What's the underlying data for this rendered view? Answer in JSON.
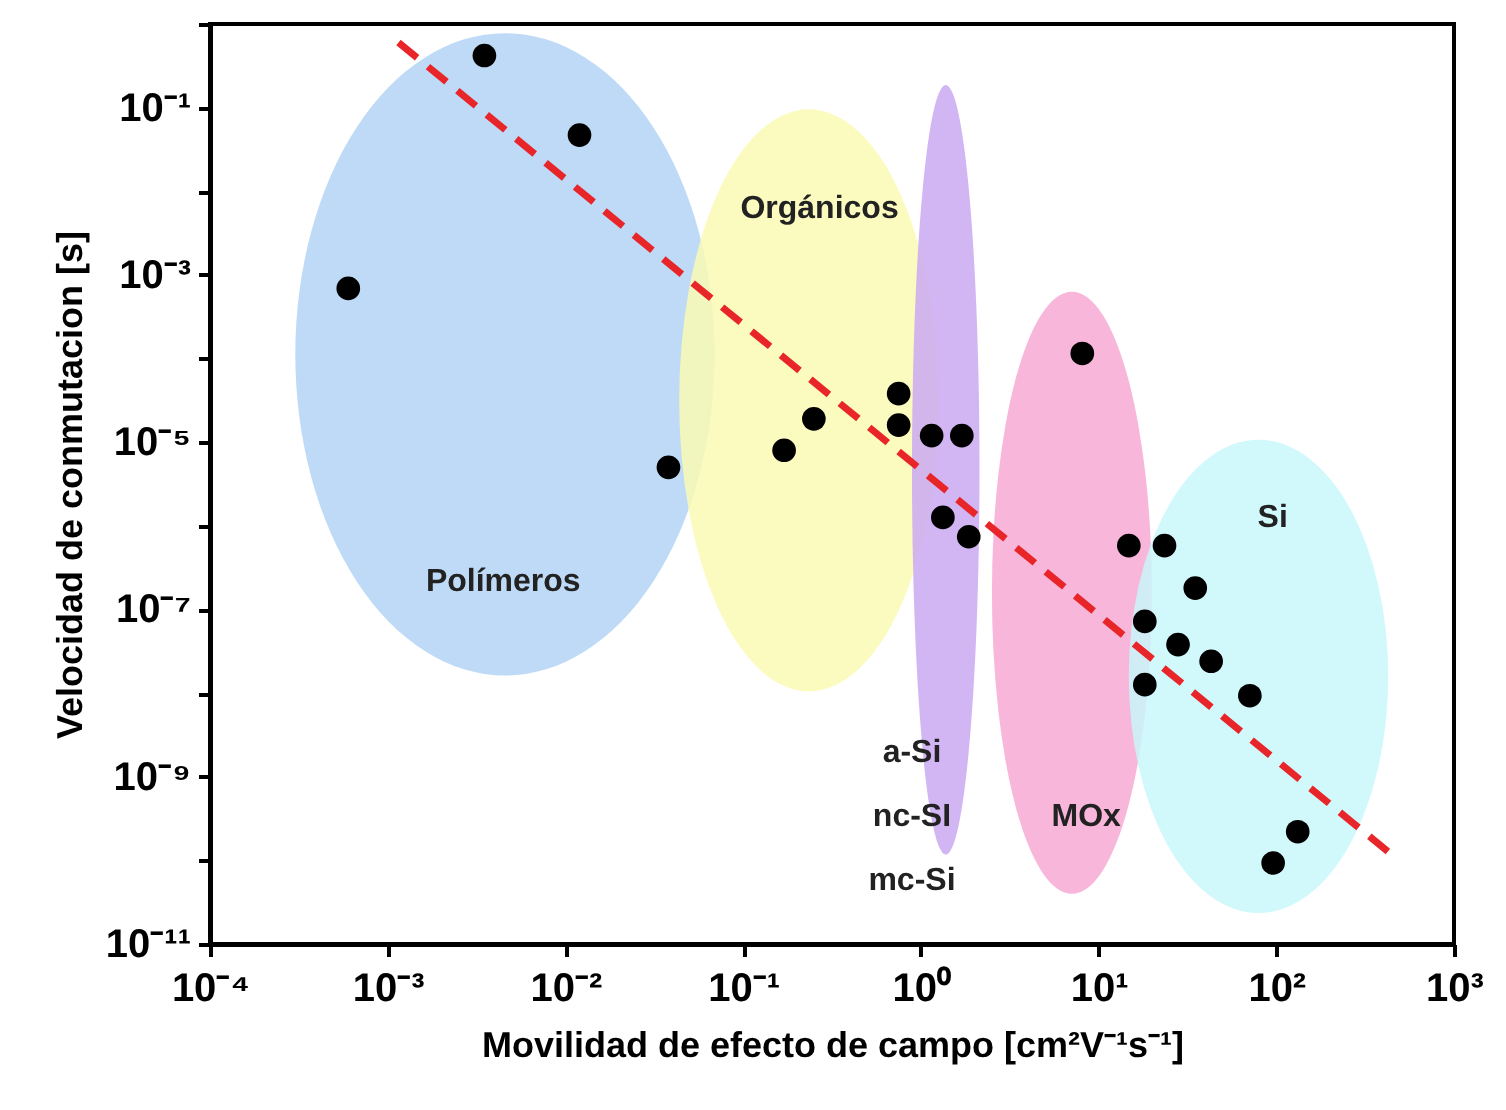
{
  "chart_data": {
    "type": "scatter",
    "xlabel": "Movilidad de efecto de campo [cm²V⁻¹s⁻¹]",
    "ylabel": "Velocidad de conmutacion [s]",
    "log": "xy",
    "grid": false,
    "marker": "circle",
    "xlim": [
      0.0001,
      1000
    ],
    "ylim": [
      1e-11,
      1
    ],
    "xticks": [
      {
        "value": 0.0001,
        "label": "10⁻⁴"
      },
      {
        "value": 0.001,
        "label": "10⁻³"
      },
      {
        "value": 0.01,
        "label": "10⁻²"
      },
      {
        "value": 0.1,
        "label": "10⁻¹"
      },
      {
        "value": 1,
        "label": "10⁰"
      },
      {
        "value": 10,
        "label": "10¹"
      },
      {
        "value": 100,
        "label": "10²"
      },
      {
        "value": 1000,
        "label": "10³"
      }
    ],
    "yticks": [
      {
        "value": 1e-11,
        "label": "10⁻¹¹"
      },
      {
        "value": 1e-10,
        "label": null
      },
      {
        "value": 1e-09,
        "label": "10⁻⁹"
      },
      {
        "value": 1e-08,
        "label": null
      },
      {
        "value": 1e-07,
        "label": "10⁻⁷"
      },
      {
        "value": 1e-06,
        "label": null
      },
      {
        "value": 1e-05,
        "label": "10⁻⁵"
      },
      {
        "value": 0.0001,
        "label": null
      },
      {
        "value": 0.001,
        "label": "10⁻³"
      },
      {
        "value": 0.01,
        "label": null
      },
      {
        "value": 0.1,
        "label": "10⁻¹"
      },
      {
        "value": 1,
        "label": null
      }
    ],
    "series": [
      {
        "color": "#000000",
        "x": [
          0.0035,
          0.012,
          0.0006,
          0.038,
          0.17,
          0.25,
          0.75,
          0.75,
          1.15,
          1.7,
          1.33,
          1.86,
          8.1,
          14.8,
          23.5,
          35,
          18.2,
          28,
          43,
          18.2,
          71,
          132,
          96
        ],
        "values": [
          0.42,
          0.047,
          0.00069,
          5e-06,
          8e-06,
          1.9e-05,
          3.8e-05,
          1.6e-05,
          1.2e-05,
          1.2e-05,
          1.26e-06,
          7.4e-07,
          0.000115,
          5.8e-07,
          5.8e-07,
          1.8e-07,
          7.2e-08,
          3.8e-08,
          2.4e-08,
          1.26e-08,
          9.3e-09,
          2.2e-10,
          9.3e-11
        ]
      },
      {
        "type": "line",
        "color": "#e8262a",
        "line_style": "dashed",
        "marker": "none",
        "x": [
          0.00115,
          440
        ],
        "values": [
          0.6,
          1.2e-10
        ]
      }
    ],
    "annotations": [
      "Polímeros",
      "Orgánicos",
      "a-Si",
      "nc-SI",
      "mc-Si",
      "MOx",
      "Si"
    ]
  }
}
